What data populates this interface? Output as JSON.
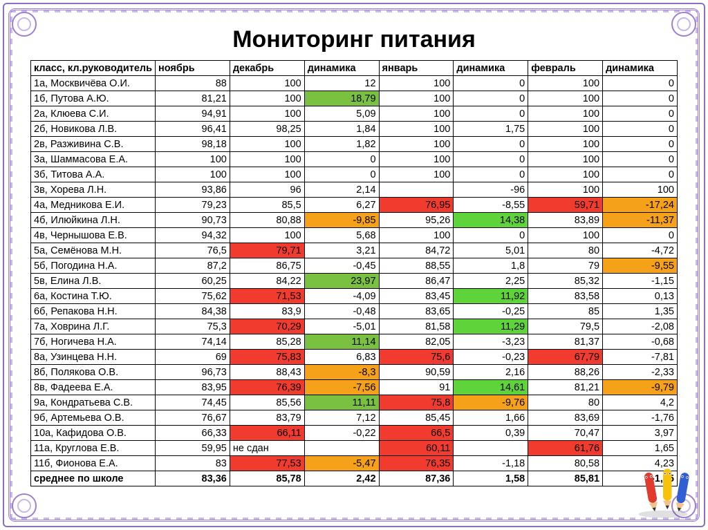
{
  "title": "Мониторинг питания",
  "colors": {
    "border": "#9b7fd4",
    "red": "#f23b2f",
    "orange": "#f6a11a",
    "green": "#7ac142",
    "brightgreen": "#5fd33a"
  },
  "table": {
    "headers": [
      "класс, кл.руководитель",
      "ноябрь",
      "декабрь",
      "динамика",
      "январь",
      "динамика",
      "февраль",
      "динамика"
    ],
    "rows": [
      {
        "name": "1а, Москвичёва О.И.",
        "cells": [
          {
            "v": "88"
          },
          {
            "v": "100"
          },
          {
            "v": "12"
          },
          {
            "v": "100"
          },
          {
            "v": "0"
          },
          {
            "v": "100"
          },
          {
            "v": "0"
          }
        ]
      },
      {
        "name": "1б, Путова А.Ю.",
        "cells": [
          {
            "v": "81,21"
          },
          {
            "v": "100"
          },
          {
            "v": "18,79",
            "bg": "green"
          },
          {
            "v": "100"
          },
          {
            "v": "0"
          },
          {
            "v": "100"
          },
          {
            "v": "0"
          }
        ]
      },
      {
        "name": "2а, Клюева С.И.",
        "cells": [
          {
            "v": "94,91"
          },
          {
            "v": "100"
          },
          {
            "v": "5,09"
          },
          {
            "v": "100"
          },
          {
            "v": "0"
          },
          {
            "v": "100"
          },
          {
            "v": "0"
          }
        ]
      },
      {
        "name": "2б, Новикова Л.В.",
        "cells": [
          {
            "v": "96,41"
          },
          {
            "v": "98,25"
          },
          {
            "v": "1,84"
          },
          {
            "v": "100"
          },
          {
            "v": "1,75"
          },
          {
            "v": "100"
          },
          {
            "v": "0"
          }
        ]
      },
      {
        "name": "2в, Разживина С.В.",
        "cells": [
          {
            "v": "98,18"
          },
          {
            "v": "100"
          },
          {
            "v": "1,82"
          },
          {
            "v": "100"
          },
          {
            "v": "0"
          },
          {
            "v": "100"
          },
          {
            "v": "0"
          }
        ]
      },
      {
        "name": "3а, Шаммасова Е.А.",
        "cells": [
          {
            "v": "100"
          },
          {
            "v": "100"
          },
          {
            "v": "0"
          },
          {
            "v": "100"
          },
          {
            "v": "0"
          },
          {
            "v": "100"
          },
          {
            "v": "0"
          }
        ]
      },
      {
        "name": "3б, Титова А.А.",
        "cells": [
          {
            "v": "100"
          },
          {
            "v": "100"
          },
          {
            "v": "0"
          },
          {
            "v": "100"
          },
          {
            "v": "0"
          },
          {
            "v": "100"
          },
          {
            "v": "0"
          }
        ]
      },
      {
        "name": "3в, Хорева Л.Н.",
        "cells": [
          {
            "v": "93,86"
          },
          {
            "v": "96"
          },
          {
            "v": "2,14"
          },
          {
            "v": ""
          },
          {
            "v": "-96"
          },
          {
            "v": "100"
          },
          {
            "v": "100"
          }
        ]
      },
      {
        "name": "4а, Медникова Е.И.",
        "cells": [
          {
            "v": "79,23"
          },
          {
            "v": "85,5"
          },
          {
            "v": "6,27"
          },
          {
            "v": "76,95",
            "bg": "red"
          },
          {
            "v": "-8,55"
          },
          {
            "v": "59,71",
            "bg": "red"
          },
          {
            "v": "-17,24",
            "bg": "orange"
          }
        ]
      },
      {
        "name": "4б, Илюйкина Л.Н.",
        "cells": [
          {
            "v": "90,73"
          },
          {
            "v": "80,88"
          },
          {
            "v": "-9,85",
            "bg": "orange"
          },
          {
            "v": "95,26"
          },
          {
            "v": "14,38",
            "bg": "brightgreen"
          },
          {
            "v": "83,89"
          },
          {
            "v": "-11,37",
            "bg": "orange"
          }
        ]
      },
      {
        "name": "4в, Чернышова Е.В.",
        "cells": [
          {
            "v": "94,32"
          },
          {
            "v": "100"
          },
          {
            "v": "5,68"
          },
          {
            "v": "100"
          },
          {
            "v": "0"
          },
          {
            "v": "100"
          },
          {
            "v": "0"
          }
        ]
      },
      {
        "name": "5а, Семёнова М.Н.",
        "cells": [
          {
            "v": "76,5"
          },
          {
            "v": "79,71",
            "bg": "red"
          },
          {
            "v": "3,21"
          },
          {
            "v": "84,72"
          },
          {
            "v": "5,01"
          },
          {
            "v": "80"
          },
          {
            "v": "-4,72"
          }
        ]
      },
      {
        "name": "5б, Погодина Н.А.",
        "cells": [
          {
            "v": "87,2"
          },
          {
            "v": "86,75"
          },
          {
            "v": "-0,45"
          },
          {
            "v": "88,55"
          },
          {
            "v": "1,8"
          },
          {
            "v": "79"
          },
          {
            "v": "-9,55",
            "bg": "orange"
          }
        ]
      },
      {
        "name": "5в, Елина Л.В.",
        "cells": [
          {
            "v": "60,25"
          },
          {
            "v": "84,22"
          },
          {
            "v": "23,97",
            "bg": "green"
          },
          {
            "v": "86,47"
          },
          {
            "v": "2,25"
          },
          {
            "v": "85,32"
          },
          {
            "v": "-1,15"
          }
        ]
      },
      {
        "name": "6а, Костина Т.Ю.",
        "cells": [
          {
            "v": "75,62"
          },
          {
            "v": "71,53",
            "bg": "red"
          },
          {
            "v": "-4,09"
          },
          {
            "v": "83,45"
          },
          {
            "v": "11,92",
            "bg": "brightgreen"
          },
          {
            "v": "83,58"
          },
          {
            "v": "0,13"
          }
        ]
      },
      {
        "name": "6б, Репакова Н.Н.",
        "cells": [
          {
            "v": "84,38"
          },
          {
            "v": "83,9"
          },
          {
            "v": "-0,48"
          },
          {
            "v": "83,65"
          },
          {
            "v": "-0,25"
          },
          {
            "v": "85"
          },
          {
            "v": "1,35"
          }
        ]
      },
      {
        "name": "7а, Ховрина Л.Г.",
        "cells": [
          {
            "v": "75,3"
          },
          {
            "v": "70,29",
            "bg": "red"
          },
          {
            "v": "-5,01"
          },
          {
            "v": "81,58"
          },
          {
            "v": "11,29",
            "bg": "brightgreen"
          },
          {
            "v": "79,5"
          },
          {
            "v": "-2,08"
          }
        ]
      },
      {
        "name": "7б, Ногичева Н.А.",
        "cells": [
          {
            "v": "74,14"
          },
          {
            "v": "85,28"
          },
          {
            "v": "11,14",
            "bg": "green"
          },
          {
            "v": "82,05"
          },
          {
            "v": "-3,23"
          },
          {
            "v": "81,37"
          },
          {
            "v": "-0,68"
          }
        ]
      },
      {
        "name": "8а, Узинцева Н.Н.",
        "cells": [
          {
            "v": "69"
          },
          {
            "v": "75,83",
            "bg": "red"
          },
          {
            "v": "6,83"
          },
          {
            "v": "75,6",
            "bg": "red"
          },
          {
            "v": "-0,23"
          },
          {
            "v": "67,79",
            "bg": "red"
          },
          {
            "v": "-7,81"
          }
        ]
      },
      {
        "name": "8б, Полякова О.В.",
        "cells": [
          {
            "v": "96,73"
          },
          {
            "v": "88,43"
          },
          {
            "v": "-8,3",
            "bg": "orange"
          },
          {
            "v": "90,59"
          },
          {
            "v": "2,16"
          },
          {
            "v": "88,26"
          },
          {
            "v": "-2,33"
          }
        ]
      },
      {
        "name": "8в, Фадеева Е.А.",
        "cells": [
          {
            "v": "83,95"
          },
          {
            "v": "76,39",
            "bg": "red"
          },
          {
            "v": "-7,56",
            "bg": "orange"
          },
          {
            "v": "91"
          },
          {
            "v": "14,61",
            "bg": "brightgreen"
          },
          {
            "v": "81,21"
          },
          {
            "v": "-9,79",
            "bg": "orange"
          }
        ]
      },
      {
        "name": "9а, Кондратьева С.В.",
        "cells": [
          {
            "v": "74,45"
          },
          {
            "v": "85,56"
          },
          {
            "v": "11,11",
            "bg": "green"
          },
          {
            "v": "75,8",
            "bg": "red"
          },
          {
            "v": "-9,76",
            "bg": "orange"
          },
          {
            "v": "80"
          },
          {
            "v": "4,2"
          }
        ]
      },
      {
        "name": "9б, Артемьева О.В.",
        "cells": [
          {
            "v": "76,67"
          },
          {
            "v": "83,79"
          },
          {
            "v": "7,12"
          },
          {
            "v": "85,45"
          },
          {
            "v": "1,66"
          },
          {
            "v": "83,69"
          },
          {
            "v": "-1,76"
          }
        ]
      },
      {
        "name": "10а, Кафидова О.В.",
        "cells": [
          {
            "v": "66,33"
          },
          {
            "v": "66,11",
            "bg": "red"
          },
          {
            "v": "-0,22"
          },
          {
            "v": "66,5",
            "bg": "red"
          },
          {
            "v": "0,39"
          },
          {
            "v": "70,47"
          },
          {
            "v": "3,97"
          }
        ]
      },
      {
        "name": "11а, Круглова Е.В.",
        "cells": [
          {
            "v": "59,95"
          },
          {
            "v": "не сдан",
            "align": "left"
          },
          {
            "v": ""
          },
          {
            "v": "60,11",
            "bg": "red"
          },
          {
            "v": ""
          },
          {
            "v": "61,76",
            "bg": "red"
          },
          {
            "v": "1,65"
          }
        ]
      },
      {
        "name": "11б, Фионова Е.А.",
        "cells": [
          {
            "v": "83"
          },
          {
            "v": "77,53",
            "bg": "red"
          },
          {
            "v": "-5,47",
            "bg": "orange"
          },
          {
            "v": "76,35",
            "bg": "red"
          },
          {
            "v": "-1,18"
          },
          {
            "v": "80,58"
          },
          {
            "v": "4,23"
          }
        ]
      }
    ],
    "summary": {
      "name": "среднее по школе",
      "cells": [
        {
          "v": "83,36"
        },
        {
          "v": "85,78"
        },
        {
          "v": "2,42"
        },
        {
          "v": "87,36"
        },
        {
          "v": "1,58"
        },
        {
          "v": "85,81"
        },
        {
          "v": "-1,55"
        }
      ]
    }
  }
}
